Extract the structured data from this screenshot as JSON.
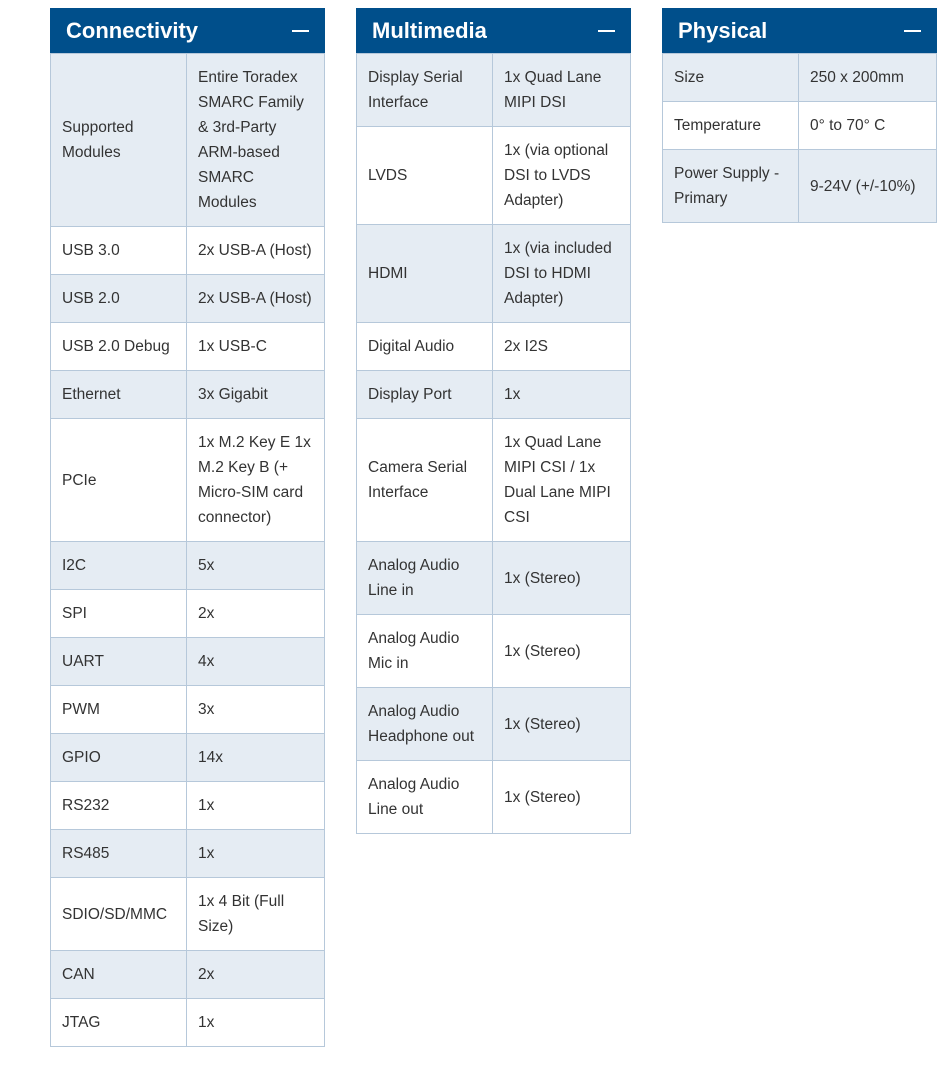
{
  "colors": {
    "header": "#004f8b",
    "row_alt": "#e5ecf3",
    "border": "#b6c8da"
  },
  "panels": [
    {
      "title": "Connectivity",
      "collapse_icon": "minus-icon",
      "rows": [
        [
          "Supported Modules",
          "Entire Toradex SMARC Family & 3rd-Party ARM-based SMARC Modules"
        ],
        [
          "USB 3.0",
          "2x USB-A (Host)"
        ],
        [
          "USB 2.0",
          "2x USB-A (Host)"
        ],
        [
          "USB 2.0 Debug",
          "1x USB-C"
        ],
        [
          "Ethernet",
          "3x Gigabit"
        ],
        [
          "PCIe",
          "1x M.2 Key E 1x M.2 Key B (+ Micro-SIM card connector)"
        ],
        [
          "I2C",
          "5x"
        ],
        [
          "SPI",
          "2x"
        ],
        [
          "UART",
          "4x"
        ],
        [
          "PWM",
          "3x"
        ],
        [
          "GPIO",
          "14x"
        ],
        [
          "RS232",
          "1x"
        ],
        [
          "RS485",
          "1x"
        ],
        [
          "SDIO/SD/MMC",
          "1x 4 Bit (Full Size)"
        ],
        [
          "CAN",
          "2x"
        ],
        [
          "JTAG",
          "1x"
        ]
      ]
    },
    {
      "title": "Multimedia",
      "collapse_icon": "minus-icon",
      "rows": [
        [
          "Display Serial Interface",
          "1x Quad Lane MIPI DSI"
        ],
        [
          "LVDS",
          "1x (via optional DSI to LVDS Adapter)"
        ],
        [
          "HDMI",
          "1x (via included DSI to HDMI Adapter)"
        ],
        [
          "Digital Audio",
          "2x I2S"
        ],
        [
          "Display Port",
          "1x"
        ],
        [
          "Camera Serial Interface",
          "1x Quad Lane MIPI CSI / 1x Dual Lane MIPI CSI"
        ],
        [
          "Analog Audio Line in",
          "1x (Stereo)"
        ],
        [
          "Analog Audio Mic in",
          "1x (Stereo)"
        ],
        [
          "Analog Audio Headphone out",
          "1x (Stereo)"
        ],
        [
          "Analog Audio Line out",
          "1x (Stereo)"
        ]
      ]
    },
    {
      "title": "Physical",
      "collapse_icon": "minus-icon",
      "rows": [
        [
          "Size",
          "250 x 200mm"
        ],
        [
          "Temperature",
          "0° to 70° C"
        ],
        [
          "Power Supply - Primary",
          "9-24V (+/-10%)"
        ]
      ]
    }
  ]
}
